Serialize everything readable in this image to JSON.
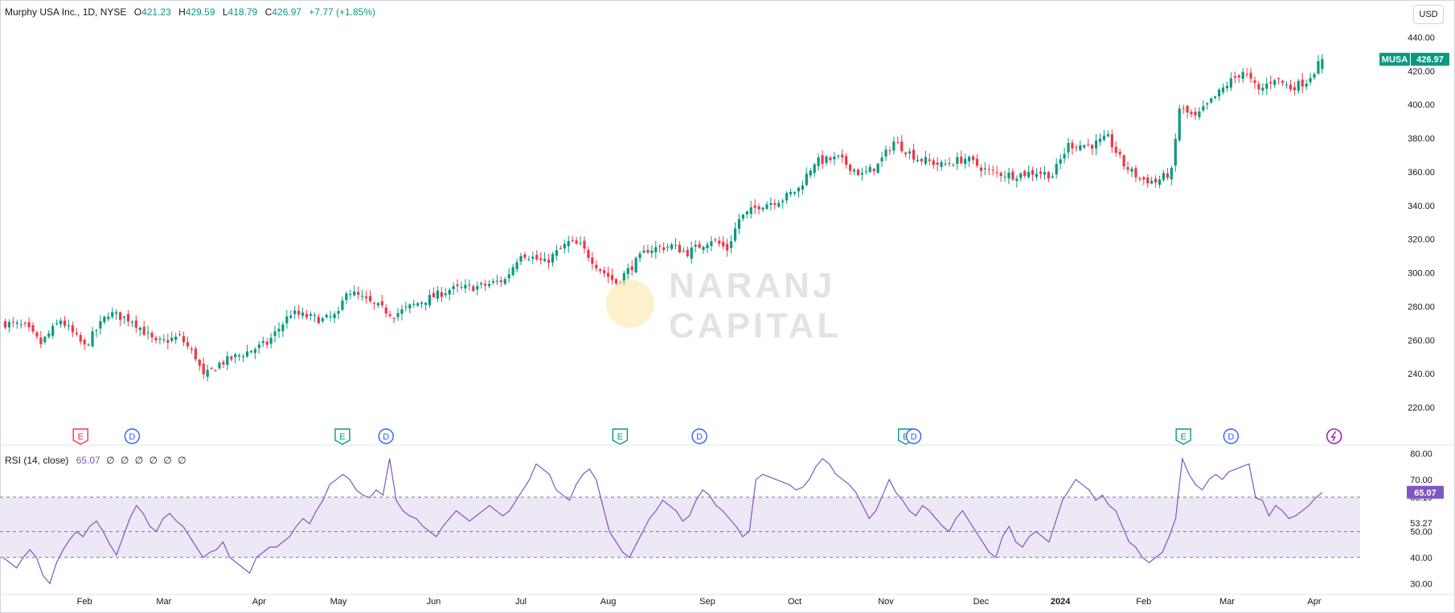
{
  "header": {
    "symbol_text": "Murphy USA Inc., 1D, NYSE",
    "open_label": "O",
    "open": "421.23",
    "high_label": "H",
    "high": "429.59",
    "low_label": "L",
    "low": "418.79",
    "close_label": "C",
    "close": "426.97",
    "change": "+7.77 (+1.85%)"
  },
  "currency": "USD",
  "ticker_badge": {
    "symbol": "MUSA",
    "price": "426.97"
  },
  "rsi_legend": {
    "label": "RSI (14, close)",
    "value": "65.07",
    "extras": [
      "∅",
      "∅",
      "∅",
      "∅",
      "∅",
      "∅"
    ]
  },
  "watermark": {
    "line1": "NARANJ",
    "line2": "CAPITAL"
  },
  "colors": {
    "up": "#089981",
    "down": "#f23645",
    "rsi_line": "#7e57c2",
    "rsi_band": "#ede7f6",
    "earnings": "#089981",
    "earnings_miss": "#f23645",
    "dividend": "#2962ff",
    "split": "#9c27b0"
  },
  "chart_data": [
    {
      "type": "candlestick",
      "title": "Murphy USA Inc., 1D, NYSE",
      "ylim": [
        210,
        445
      ],
      "yticks": [
        220,
        240,
        260,
        280,
        300,
        320,
        340,
        360,
        380,
        400,
        420,
        440
      ],
      "ytick_labels": [
        "220.00",
        "240.00",
        "260.00",
        "280.00",
        "300.00",
        "320.00",
        "340.00",
        "360.00",
        "380.00",
        "400.00",
        "420.00",
        "440.00"
      ],
      "x_labels": [
        {
          "label": "Feb",
          "index": 20
        },
        {
          "label": "Mar",
          "index": 40
        },
        {
          "label": "Apr",
          "index": 64
        },
        {
          "label": "May",
          "index": 84
        },
        {
          "label": "Jun",
          "index": 108
        },
        {
          "label": "Jul",
          "index": 130
        },
        {
          "label": "Aug",
          "index": 152
        },
        {
          "label": "Sep",
          "index": 177
        },
        {
          "label": "Oct",
          "index": 199
        },
        {
          "label": "Nov",
          "index": 222
        },
        {
          "label": "Dec",
          "index": 246
        },
        {
          "label": "2024",
          "index": 266
        },
        {
          "label": "Feb",
          "index": 287
        },
        {
          "label": "Mar",
          "index": 308
        },
        {
          "label": "Apr",
          "index": 330
        }
      ],
      "close_path": [
        [
          0,
          270
        ],
        [
          5,
          268
        ],
        [
          9,
          258
        ],
        [
          14,
          272
        ],
        [
          20,
          256
        ],
        [
          26,
          276
        ],
        [
          32,
          272
        ],
        [
          38,
          258
        ],
        [
          44,
          262
        ],
        [
          48,
          250
        ],
        [
          50,
          238
        ],
        [
          54,
          246
        ],
        [
          60,
          252
        ],
        [
          66,
          258
        ],
        [
          72,
          276
        ],
        [
          80,
          272
        ],
        [
          84,
          275
        ],
        [
          86,
          290
        ],
        [
          92,
          282
        ],
        [
          98,
          275
        ],
        [
          104,
          282
        ],
        [
          112,
          290
        ],
        [
          120,
          292
        ],
        [
          126,
          296
        ],
        [
          130,
          312
        ],
        [
          136,
          306
        ],
        [
          142,
          318
        ],
        [
          145,
          316
        ],
        [
          150,
          302
        ],
        [
          154,
          294
        ],
        [
          158,
          304
        ],
        [
          162,
          314
        ],
        [
          168,
          316
        ],
        [
          172,
          312
        ],
        [
          178,
          320
        ],
        [
          182,
          314
        ],
        [
          185,
          332
        ],
        [
          190,
          340
        ],
        [
          196,
          344
        ],
        [
          200,
          350
        ],
        [
          204,
          366
        ],
        [
          210,
          368
        ],
        [
          216,
          358
        ],
        [
          220,
          364
        ],
        [
          224,
          378
        ],
        [
          230,
          368
        ],
        [
          236,
          364
        ],
        [
          242,
          368
        ],
        [
          248,
          360
        ],
        [
          254,
          358
        ],
        [
          260,
          360
        ],
        [
          264,
          358
        ],
        [
          268,
          376
        ],
        [
          274,
          376
        ],
        [
          278,
          380
        ],
        [
          282,
          364
        ],
        [
          286,
          356
        ],
        [
          290,
          354
        ],
        [
          294,
          360
        ],
        [
          296,
          398
        ],
        [
          300,
          392
        ],
        [
          304,
          402
        ],
        [
          308,
          412
        ],
        [
          312,
          420
        ],
        [
          316,
          408
        ],
        [
          320,
          416
        ],
        [
          324,
          410
        ],
        [
          328,
          414
        ],
        [
          332,
          427
        ]
      ],
      "last_price": 426.97
    },
    {
      "type": "line",
      "title": "RSI (14, close)",
      "ylim": [
        27,
        82
      ],
      "yticks": [
        30,
        40,
        50,
        60,
        70,
        80
      ],
      "ytick_labels": [
        "30.00",
        "40.00",
        "50.00",
        "60.00",
        "70.00",
        "80.00"
      ],
      "bands": [
        40,
        50,
        63.19
      ],
      "band_labels": [
        "63.19",
        "53.27"
      ],
      "values": [
        40,
        38,
        36,
        40,
        43,
        40,
        33,
        30,
        38,
        43,
        47,
        50,
        48,
        52,
        54,
        50,
        45,
        41,
        48,
        55,
        60,
        57,
        52,
        50,
        55,
        57,
        54,
        52,
        48,
        44,
        40,
        42,
        43,
        46,
        40,
        38,
        36,
        34,
        40,
        42,
        44,
        44,
        46,
        48,
        52,
        55,
        53,
        58,
        62,
        68,
        70,
        72,
        70,
        66,
        64,
        63,
        66,
        64,
        78,
        62,
        58,
        56,
        55,
        52,
        50,
        48,
        52,
        55,
        58,
        56,
        54,
        56,
        58,
        60,
        58,
        56,
        58,
        62,
        66,
        70,
        76,
        74,
        72,
        66,
        64,
        62,
        68,
        72,
        74,
        70,
        60,
        50,
        46,
        42,
        40,
        45,
        50,
        55,
        58,
        62,
        60,
        58,
        54,
        56,
        62,
        66,
        64,
        60,
        58,
        55,
        52,
        48,
        50,
        70,
        72,
        71,
        70,
        69,
        68,
        66,
        67,
        70,
        75,
        78,
        76,
        72,
        70,
        68,
        65,
        60,
        55,
        58,
        64,
        70,
        65,
        62,
        58,
        56,
        60,
        58,
        55,
        52,
        50,
        55,
        58,
        54,
        50,
        46,
        42,
        40,
        48,
        52,
        46,
        44,
        48,
        50,
        48,
        46,
        54,
        62,
        66,
        70,
        68,
        66,
        62,
        64,
        60,
        58,
        52,
        46,
        44,
        40,
        38,
        40,
        42,
        48,
        55,
        78,
        72,
        68,
        66,
        70,
        72,
        70,
        73,
        74,
        75,
        76,
        63,
        62,
        56,
        60,
        58,
        55,
        56,
        58,
        60,
        63,
        65
      ],
      "last_value": 65.07
    }
  ],
  "events": [
    {
      "type": "E",
      "index": 19,
      "color": "#f23645"
    },
    {
      "type": "D",
      "index": 32
    },
    {
      "type": "E",
      "index": 85,
      "color": "#089981"
    },
    {
      "type": "D",
      "index": 96
    },
    {
      "type": "E",
      "index": 155,
      "color": "#089981"
    },
    {
      "type": "D",
      "index": 175
    },
    {
      "type": "E",
      "index": 227,
      "color": "#089981"
    },
    {
      "type": "D",
      "index": 229
    },
    {
      "type": "E",
      "index": 297,
      "color": "#089981"
    },
    {
      "type": "D",
      "index": 309
    },
    {
      "type": "S",
      "index": 335
    }
  ]
}
